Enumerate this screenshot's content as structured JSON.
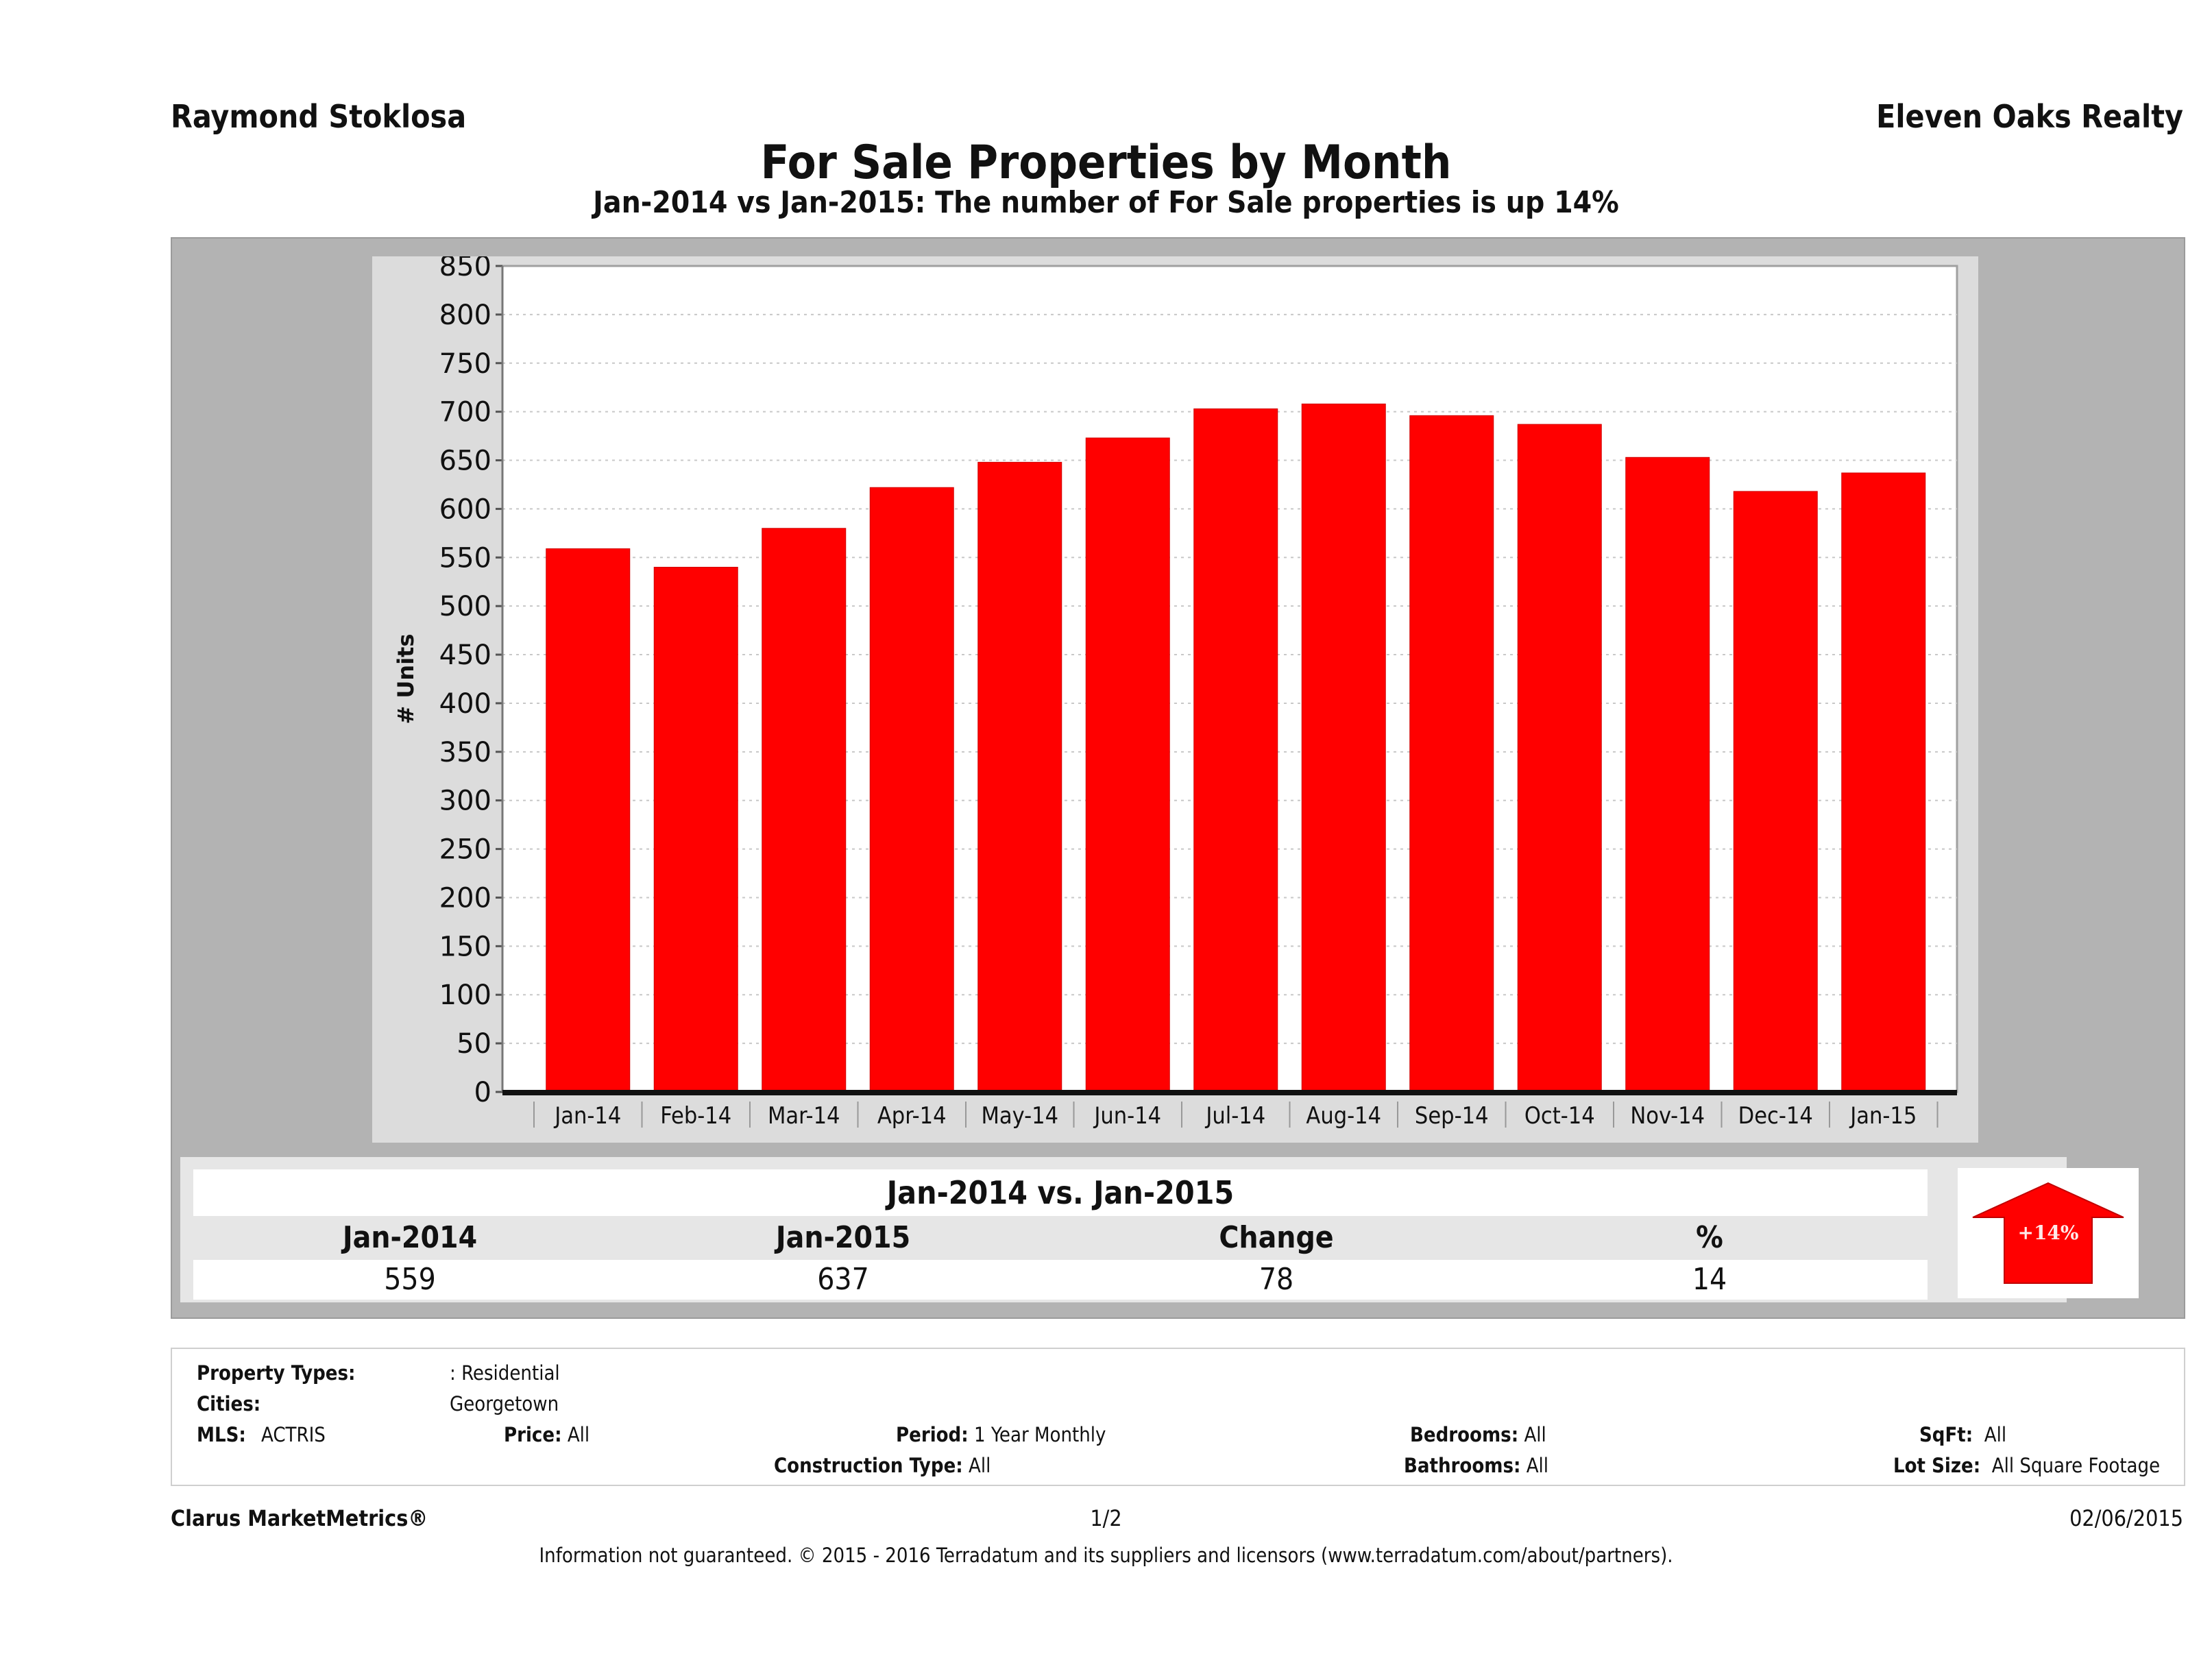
{
  "header": {
    "agent_name": "Raymond Stoklosa",
    "brokerage": "Eleven Oaks Realty",
    "title": "For Sale Properties by Month",
    "subtitle": "Jan-2014 vs Jan-2015: The number of For Sale  properties is up 14%"
  },
  "chart_data": {
    "type": "bar",
    "title": "For Sale Properties by Month",
    "xlabel": "",
    "ylabel": "# Units",
    "ylim": [
      0,
      850
    ],
    "yticks": [
      0,
      50,
      100,
      150,
      200,
      250,
      300,
      350,
      400,
      450,
      500,
      550,
      600,
      650,
      700,
      750,
      800,
      850
    ],
    "grid": true,
    "legend": "none",
    "bar_color": "#ff0000",
    "categories": [
      "Jan-14",
      "Feb-14",
      "Mar-14",
      "Apr-14",
      "May-14",
      "Jun-14",
      "Jul-14",
      "Aug-14",
      "Sep-14",
      "Oct-14",
      "Nov-14",
      "Dec-14",
      "Jan-15"
    ],
    "values": [
      559,
      540,
      580,
      622,
      648,
      673,
      703,
      708,
      696,
      687,
      653,
      618,
      637
    ]
  },
  "summary": {
    "title": "Jan-2014 vs. Jan-2015",
    "headers": [
      "Jan-2014",
      "Jan-2015",
      "Change",
      "%"
    ],
    "values": [
      "559",
      "637",
      "78",
      "14"
    ],
    "badge_label": "+14%",
    "badge_color": "#ff0000",
    "badge_icon": "up-arrow-icon"
  },
  "filters": {
    "property_types_label": "Property Types:",
    "property_types_value": ": Residential",
    "cities_label": "Cities:",
    "cities_value": "Georgetown",
    "mls_label": "MLS:",
    "mls_value": "ACTRIS",
    "price_label": "Price:",
    "price_value": "All",
    "period_label": "Period:",
    "period_value": "1 Year Monthly",
    "construction_label": "Construction Type:",
    "construction_value": "All",
    "bedrooms_label": "Bedrooms:",
    "bedrooms_value": "All",
    "bathrooms_label": "Bathrooms:",
    "bathrooms_value": "All",
    "sqft_label": "SqFt:",
    "sqft_value": "All",
    "lotsize_label": "Lot Size:",
    "lotsize_value": "All Square Footage"
  },
  "footer": {
    "brand": "Clarus MarketMetrics®",
    "page": "1/2",
    "date": "02/06/2015",
    "disclaimer": "Information not guaranteed. © 2015 - 2016 Terradatum and its suppliers and licensors (www.terradatum.com/about/partners)."
  }
}
